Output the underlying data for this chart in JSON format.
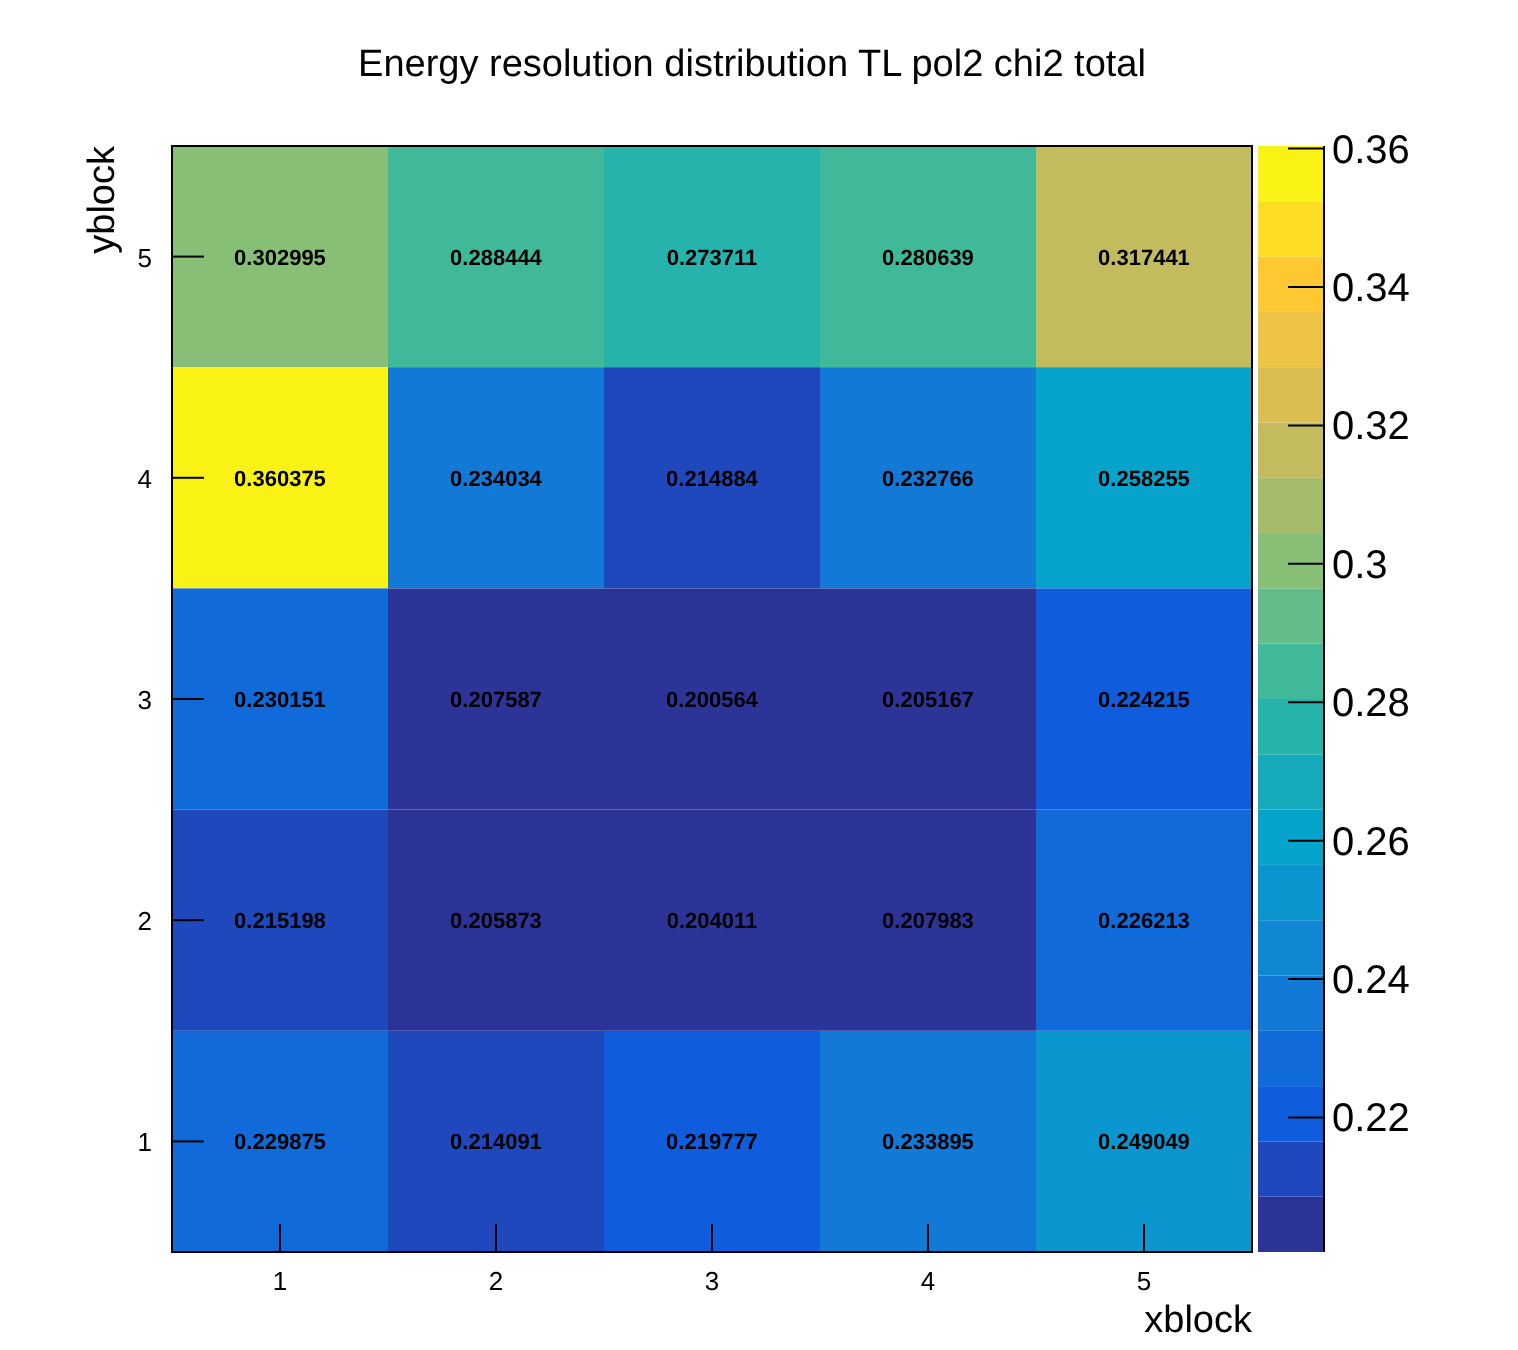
{
  "chart_data": {
    "type": "heatmap",
    "title": "Energy resolution distribution TL pol2 chi2 total",
    "xlabel": "xblock",
    "ylabel": "yblock",
    "categories": [
      "1",
      "2",
      "3",
      "4",
      "5"
    ],
    "y_categories": [
      "5",
      "4",
      "3",
      "2",
      "1"
    ],
    "cells": [
      [
        0.302995,
        0.288444,
        0.273711,
        0.280639,
        0.317441
      ],
      [
        0.360375,
        0.234034,
        0.214884,
        0.232766,
        0.258255
      ],
      [
        0.230151,
        0.207587,
        0.200564,
        0.205167,
        0.224215
      ],
      [
        0.215198,
        0.205873,
        0.204011,
        0.207983,
        0.226213
      ],
      [
        0.229875,
        0.214091,
        0.219777,
        0.233895,
        0.249049
      ]
    ],
    "data_labels": true,
    "clim": [
      0.200564,
      0.360375
    ],
    "cticks": [
      0.22,
      0.24,
      0.26,
      0.28,
      0.3,
      0.32,
      0.34,
      0.36
    ]
  }
}
